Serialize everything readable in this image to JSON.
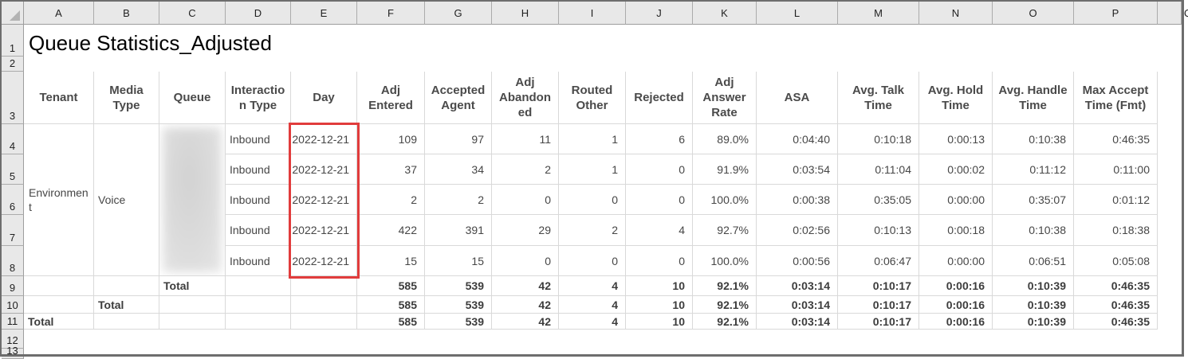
{
  "spreadsheet": {
    "title": "Queue Statistics_Adjusted",
    "column_letters": [
      "A",
      "B",
      "C",
      "D",
      "E",
      "F",
      "G",
      "H",
      "I",
      "J",
      "K",
      "L",
      "M",
      "N",
      "O",
      "P",
      "Q"
    ],
    "row_numbers": [
      "1",
      "2",
      "3",
      "4",
      "5",
      "6",
      "7",
      "8",
      "9",
      "10",
      "11",
      "12",
      "13"
    ]
  },
  "report": {
    "columns": [
      "Tenant",
      "Media Type",
      "Queue",
      "Interaction Type",
      "Day",
      "Adj Entered",
      "Accepted Agent",
      "Adj Abandoned",
      "Routed Other",
      "Rejected",
      "Adj Answer Rate",
      "ASA",
      "Avg. Talk Time",
      "Avg. Hold Time",
      "Avg. Handle Time",
      "Max Accept Time (Fmt)"
    ],
    "tenant": "Environment",
    "media_type": "Voice",
    "queue_redacted": true,
    "rows": [
      {
        "interaction_type": "Inbound",
        "day": "2022-12-21",
        "adj_entered": "109",
        "accepted_agent": "97",
        "adj_abandoned": "11",
        "routed_other": "1",
        "rejected": "6",
        "adj_answer_rate": "89.0%",
        "asa": "0:04:40",
        "avg_talk_time": "0:10:18",
        "avg_hold_time": "0:00:13",
        "avg_handle_time": "0:10:38",
        "max_accept_time_fmt": "0:46:35"
      },
      {
        "interaction_type": "Inbound",
        "day": "2022-12-21",
        "adj_entered": "37",
        "accepted_agent": "34",
        "adj_abandoned": "2",
        "routed_other": "1",
        "rejected": "0",
        "adj_answer_rate": "91.9%",
        "asa": "0:03:54",
        "avg_talk_time": "0:11:04",
        "avg_hold_time": "0:00:02",
        "avg_handle_time": "0:11:12",
        "max_accept_time_fmt": "0:11:00"
      },
      {
        "interaction_type": "Inbound",
        "day": "2022-12-21",
        "adj_entered": "2",
        "accepted_agent": "2",
        "adj_abandoned": "0",
        "routed_other": "0",
        "rejected": "0",
        "adj_answer_rate": "100.0%",
        "asa": "0:00:38",
        "avg_talk_time": "0:35:05",
        "avg_hold_time": "0:00:00",
        "avg_handle_time": "0:35:07",
        "max_accept_time_fmt": "0:01:12"
      },
      {
        "interaction_type": "Inbound",
        "day": "2022-12-21",
        "adj_entered": "422",
        "accepted_agent": "391",
        "adj_abandoned": "29",
        "routed_other": "2",
        "rejected": "4",
        "adj_answer_rate": "92.7%",
        "asa": "0:02:56",
        "avg_talk_time": "0:10:13",
        "avg_hold_time": "0:00:18",
        "avg_handle_time": "0:10:38",
        "max_accept_time_fmt": "0:18:38"
      },
      {
        "interaction_type": "Inbound",
        "day": "2022-12-21",
        "adj_entered": "15",
        "accepted_agent": "15",
        "adj_abandoned": "0",
        "routed_other": "0",
        "rejected": "0",
        "adj_answer_rate": "100.0%",
        "asa": "0:00:56",
        "avg_talk_time": "0:06:47",
        "avg_hold_time": "0:00:00",
        "avg_handle_time": "0:06:51",
        "max_accept_time_fmt": "0:05:08"
      }
    ],
    "totals": [
      {
        "scope": "queue",
        "label": "Total",
        "adj_entered": "585",
        "accepted_agent": "539",
        "adj_abandoned": "42",
        "routed_other": "4",
        "rejected": "10",
        "adj_answer_rate": "92.1%",
        "asa": "0:03:14",
        "avg_talk_time": "0:10:17",
        "avg_hold_time": "0:00:16",
        "avg_handle_time": "0:10:39",
        "max_accept_time_fmt": "0:46:35"
      },
      {
        "scope": "media_type",
        "label": "Total",
        "adj_entered": "585",
        "accepted_agent": "539",
        "adj_abandoned": "42",
        "routed_other": "4",
        "rejected": "10",
        "adj_answer_rate": "92.1%",
        "asa": "0:03:14",
        "avg_talk_time": "0:10:17",
        "avg_hold_time": "0:00:16",
        "avg_handle_time": "0:10:39",
        "max_accept_time_fmt": "0:46:35"
      },
      {
        "scope": "tenant",
        "label": "Total",
        "adj_entered": "585",
        "accepted_agent": "539",
        "adj_abandoned": "42",
        "routed_other": "4",
        "rejected": "10",
        "adj_answer_rate": "92.1%",
        "asa": "0:03:14",
        "avg_talk_time": "0:10:17",
        "avg_hold_time": "0:00:16",
        "avg_handle_time": "0:10:39",
        "max_accept_time_fmt": "0:46:35"
      }
    ],
    "highlight": {
      "column": "Day",
      "color": "#e13c3c"
    }
  }
}
